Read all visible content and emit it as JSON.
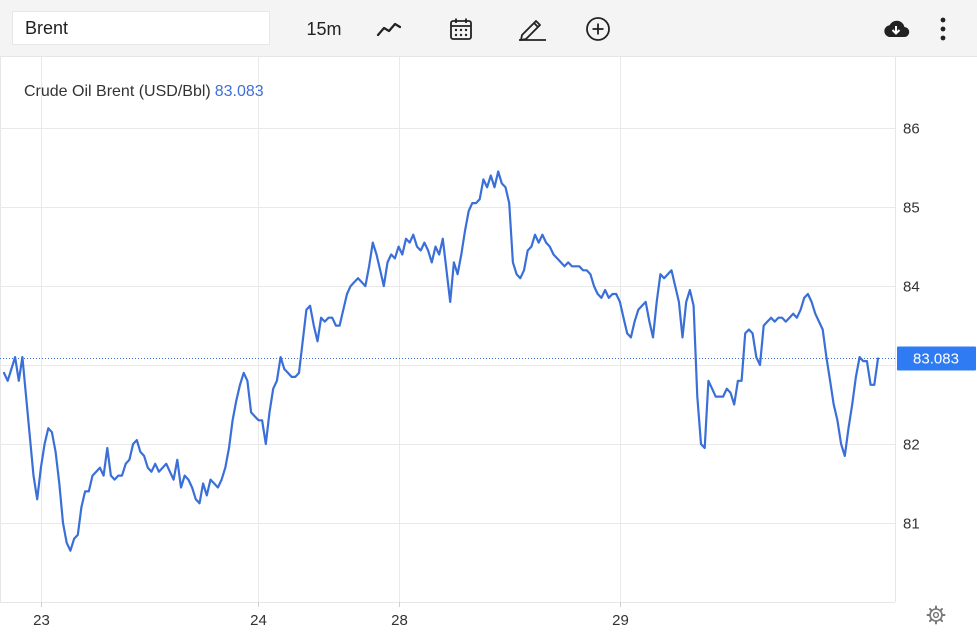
{
  "toolbar": {
    "symbol_value": "Brent",
    "interval_label": "15m",
    "icons": [
      "chart-type-icon",
      "calendar-icon",
      "draw-pencil-icon",
      "add-indicator-icon",
      "download-cloud-icon",
      "more-vertical-icon"
    ]
  },
  "legend": {
    "name": "Crude Oil Brent (USD/Bbl)",
    "value": "83.083"
  },
  "colors": {
    "line": "#3a6fd8",
    "price_badge": "#2f7bf4",
    "grid": "#e9e9e9"
  },
  "chart_data": {
    "type": "line",
    "title": "Crude Oil Brent (USD/Bbl)",
    "last_price": "83.083",
    "last_value": 83.083,
    "ylim": [
      80.0,
      86.9
    ],
    "y_ticks": [
      81,
      82,
      83,
      84,
      85,
      86
    ],
    "x_tick_labels": [
      "23",
      "24",
      "28",
      "29"
    ],
    "x_tick_index": [
      10,
      69,
      107,
      167
    ],
    "grid": true,
    "series": [
      {
        "values": [
          82.9,
          82.8,
          82.95,
          83.1,
          82.8,
          83.1,
          82.6,
          82.1,
          81.6,
          81.3,
          81.7,
          82.0,
          82.2,
          82.15,
          81.9,
          81.5,
          81.0,
          80.75,
          80.65,
          80.8,
          80.85,
          81.2,
          81.4,
          81.4,
          81.6,
          81.65,
          81.7,
          81.6,
          81.95,
          81.6,
          81.55,
          81.6,
          81.6,
          81.75,
          81.8,
          82.0,
          82.05,
          81.9,
          81.85,
          81.7,
          81.65,
          81.75,
          81.65,
          81.7,
          81.75,
          81.65,
          81.55,
          81.8,
          81.45,
          81.6,
          81.55,
          81.45,
          81.3,
          81.25,
          81.5,
          81.35,
          81.55,
          81.5,
          81.45,
          81.55,
          81.7,
          81.95,
          82.3,
          82.55,
          82.75,
          82.9,
          82.8,
          82.4,
          82.35,
          82.3,
          82.3,
          82.0,
          82.4,
          82.7,
          82.8,
          83.1,
          82.95,
          82.9,
          82.85,
          82.85,
          82.9,
          83.3,
          83.7,
          83.75,
          83.5,
          83.3,
          83.6,
          83.55,
          83.6,
          83.6,
          83.5,
          83.5,
          83.7,
          83.9,
          84.0,
          84.05,
          84.1,
          84.05,
          84.0,
          84.25,
          84.55,
          84.4,
          84.2,
          84.0,
          84.3,
          84.4,
          84.35,
          84.5,
          84.4,
          84.6,
          84.55,
          84.65,
          84.5,
          84.45,
          84.55,
          84.45,
          84.3,
          84.5,
          84.4,
          84.6,
          84.2,
          83.8,
          84.3,
          84.15,
          84.4,
          84.7,
          84.95,
          85.05,
          85.05,
          85.1,
          85.35,
          85.25,
          85.4,
          85.25,
          85.45,
          85.3,
          85.25,
          85.05,
          84.3,
          84.15,
          84.1,
          84.2,
          84.45,
          84.5,
          84.65,
          84.55,
          84.65,
          84.55,
          84.5,
          84.4,
          84.35,
          84.3,
          84.25,
          84.3,
          84.25,
          84.25,
          84.25,
          84.2,
          84.2,
          84.15,
          84.0,
          83.9,
          83.85,
          83.95,
          83.85,
          83.9,
          83.9,
          83.8,
          83.6,
          83.4,
          83.35,
          83.55,
          83.7,
          83.75,
          83.8,
          83.55,
          83.35,
          83.8,
          84.15,
          84.1,
          84.15,
          84.2,
          84.0,
          83.8,
          83.35,
          83.8,
          83.95,
          83.75,
          82.6,
          82.0,
          81.95,
          82.8,
          82.7,
          82.6,
          82.6,
          82.6,
          82.7,
          82.65,
          82.5,
          82.8,
          82.8,
          83.4,
          83.45,
          83.4,
          83.1,
          83.0,
          83.5,
          83.55,
          83.6,
          83.55,
          83.6,
          83.6,
          83.55,
          83.6,
          83.65,
          83.6,
          83.7,
          83.85,
          83.9,
          83.8,
          83.65,
          83.55,
          83.45,
          83.1,
          82.8,
          82.5,
          82.3,
          82.0,
          81.85,
          82.2,
          82.5,
          82.85,
          83.1,
          83.05,
          83.05,
          82.75,
          82.75,
          83.083
        ]
      }
    ]
  }
}
